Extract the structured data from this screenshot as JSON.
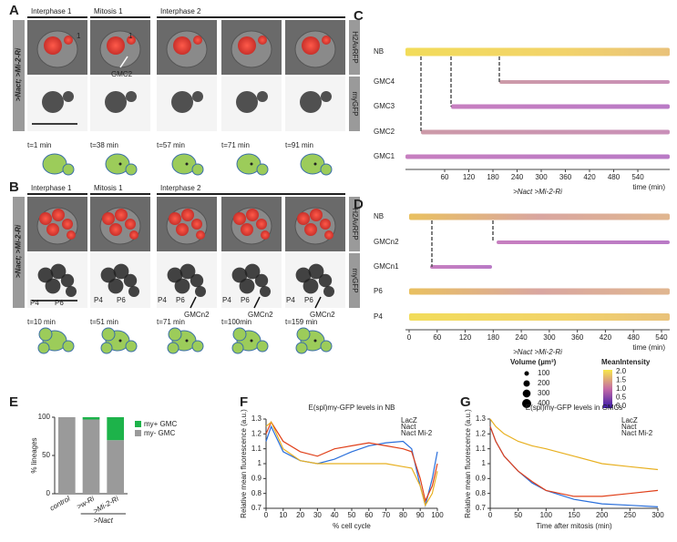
{
  "panels": {
    "A": {
      "label": "A",
      "phases": [
        "Interphase 1",
        "Mitosis 1",
        "Interphase 2"
      ],
      "side": ">Nact; >Mi-2-Ri",
      "channels": [
        "H2AvRFP",
        "mγGFP"
      ],
      "annotations": [
        "1",
        "1",
        "GMC2"
      ],
      "times": [
        "t=1 min",
        "t=38 min",
        "t=57 min",
        "t=71 min",
        "t=91 min"
      ]
    },
    "B": {
      "label": "B",
      "phases": [
        "Interphase 1",
        "Mitosis 1",
        "Interphase 2"
      ],
      "side": ">Nact; >Mi-2-Ri",
      "channels": [
        "H2AvRFP",
        "mγGFP"
      ],
      "annotations": [
        "P4",
        "P6",
        "P4",
        "P6",
        "P4",
        "P6",
        "GMCn2",
        "P4",
        "P6",
        "GMCn2",
        "P4",
        "P6",
        "GMCn2"
      ],
      "times": [
        "t=10 min",
        "t=51 min",
        "t=71 min",
        "t=100min",
        "t=159 min"
      ]
    },
    "C": {
      "label": "C",
      "rows": [
        "NB",
        "GMC4",
        "GMC3",
        "GMC2",
        "GMC1"
      ],
      "xticks": [
        60,
        120,
        180,
        240,
        300,
        360,
        420,
        480,
        540
      ],
      "xlabel": "time (min)",
      "genotype": ">Nact >Mi-2-Ri"
    },
    "D": {
      "label": "D",
      "rows": [
        "NB",
        "GMCn2",
        "GMCn1",
        "P6",
        "P4"
      ],
      "xticks": [
        0,
        60,
        120,
        180,
        240,
        300,
        360,
        420,
        480,
        540
      ],
      "xlabel": "time (min)",
      "genotype": ">Nact >Mi-2-Ri"
    },
    "legend": {
      "volume_title": "Volume (µm³)",
      "volume_values": [
        100,
        200,
        300,
        400
      ],
      "intensity_title": "MeanIntensity",
      "intensity_ticks": [
        "2.0",
        "1.5",
        "1.0",
        "0.5",
        "0.0"
      ]
    },
    "E": {
      "label": "E"
    },
    "F": {
      "label": "F"
    },
    "G": {
      "label": "G"
    }
  },
  "chart_data": [
    {
      "type": "bar",
      "categories": [
        "control",
        ">w-Ri",
        ">Mi-2-Ri"
      ],
      "group_label": ">Nact",
      "ylabel": "% lineages",
      "series": [
        {
          "name": "my+ GMC",
          "color": "#1db34a",
          "values": [
            0,
            3,
            30
          ]
        },
        {
          "name": "my- GMC",
          "color": "#9a9a9a",
          "values": [
            100,
            97,
            70
          ]
        }
      ],
      "ylim": [
        0,
        100
      ],
      "yticks": [
        0,
        50,
        100
      ]
    },
    {
      "type": "line",
      "title": "E(spl)mγ-GFP levels in NB",
      "xlabel": "% cell cycle",
      "ylabel": "Relative mean fluorescence (a.u.)",
      "x": [
        0,
        3,
        10,
        20,
        30,
        40,
        50,
        60,
        70,
        80,
        85,
        90,
        93,
        97,
        100
      ],
      "series": [
        {
          "name": "LacZ",
          "color": "#2a6fdb",
          "values": [
            1.15,
            1.25,
            1.08,
            1.02,
            1.0,
            1.03,
            1.08,
            1.12,
            1.14,
            1.15,
            1.1,
            0.85,
            0.72,
            0.9,
            1.08
          ]
        },
        {
          "name": "Nact",
          "color": "#e0401a",
          "values": [
            1.2,
            1.28,
            1.15,
            1.08,
            1.05,
            1.1,
            1.12,
            1.14,
            1.12,
            1.1,
            1.08,
            0.9,
            0.75,
            0.85,
            1.0
          ]
        },
        {
          "name": "Nact Mi-2",
          "color": "#e8b020",
          "values": [
            1.25,
            1.28,
            1.1,
            1.02,
            1.0,
            1.0,
            1.0,
            1.0,
            1.0,
            0.98,
            0.97,
            0.85,
            0.72,
            0.8,
            0.95
          ]
        }
      ],
      "xlim": [
        0,
        100
      ],
      "xticks": [
        0,
        10,
        20,
        30,
        40,
        50,
        60,
        70,
        80,
        90,
        100
      ],
      "ylim": [
        0.7,
        1.3
      ],
      "yticks": [
        0.7,
        0.8,
        0.9,
        1,
        1.1,
        1.2,
        1.3
      ]
    },
    {
      "type": "line",
      "title": "E(spl)mγ-GFP levels in GMCs",
      "xlabel": "Time after mitosis (min)",
      "ylabel": "Relative mean fluorescence (a.u.)",
      "x": [
        0,
        10,
        25,
        50,
        75,
        100,
        150,
        200,
        250,
        300
      ],
      "series": [
        {
          "name": "LacZ",
          "color": "#2a6fdb",
          "values": [
            1.25,
            1.15,
            1.05,
            0.95,
            0.87,
            0.82,
            0.76,
            0.73,
            0.72,
            0.71
          ]
        },
        {
          "name": "Nact",
          "color": "#e0401a",
          "values": [
            1.25,
            1.15,
            1.05,
            0.95,
            0.88,
            0.82,
            0.78,
            0.78,
            0.8,
            0.82
          ]
        },
        {
          "name": "Nact Mi-2",
          "color": "#e8b020",
          "values": [
            1.3,
            1.25,
            1.2,
            1.15,
            1.12,
            1.1,
            1.05,
            1.0,
            0.98,
            0.96
          ]
        }
      ],
      "xlim": [
        0,
        300
      ],
      "xticks": [
        0,
        50,
        100,
        150,
        200,
        250,
        300
      ],
      "ylim": [
        0.7,
        1.3
      ],
      "yticks": [
        0.7,
        0.8,
        0.9,
        1,
        1.1,
        1.2,
        1.3
      ]
    }
  ]
}
